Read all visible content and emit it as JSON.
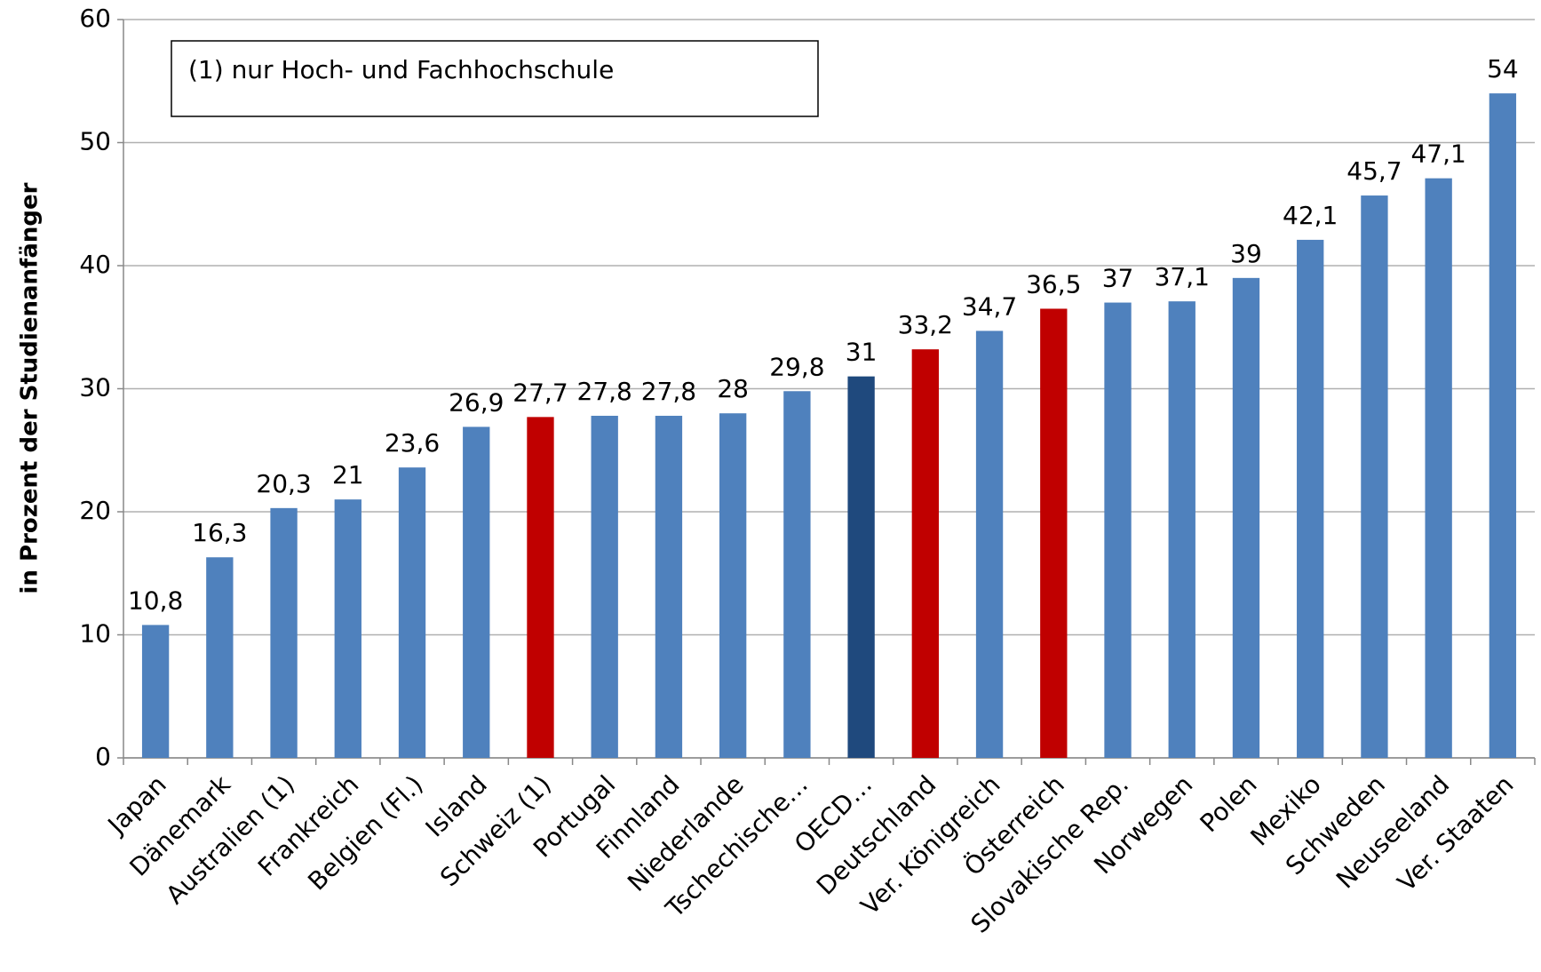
{
  "chart_data": {
    "type": "bar",
    "y_label": "in Prozent der Studienanfänger",
    "annotation": "(1) nur Hoch- und Fachhochschule",
    "categories": [
      "Japan",
      "Dänemark",
      "Australien (1)",
      "Frankreich",
      "Belgien (Fl.)",
      "Island",
      "Schweiz (1)",
      "Portugal",
      "Finnland",
      "Niederlande",
      "Tschechische…",
      "OECD…",
      "Deutschland",
      "Ver. Königreich",
      "Österreich",
      "Slovakische Rep.",
      "Norwegen",
      "Polen",
      "Mexiko",
      "Schweden",
      "Neuseeland",
      "Ver. Staaten"
    ],
    "values": [
      10.8,
      16.3,
      20.3,
      21,
      23.6,
      26.9,
      27.7,
      27.8,
      27.8,
      28,
      29.8,
      31,
      33.2,
      34.7,
      36.5,
      37,
      37.1,
      39,
      42.1,
      45.7,
      47.1,
      54
    ],
    "value_labels": [
      "10,8",
      "16,3",
      "20,3",
      "21",
      "23,6",
      "26,9",
      "27,7",
      "27,8",
      "27,8",
      "28",
      "29,8",
      "31",
      "33,2",
      "34,7",
      "36,5",
      "37",
      "37,1",
      "39",
      "42,1",
      "45,7",
      "47,1",
      "54"
    ],
    "colors": [
      "#4f81bd",
      "#4f81bd",
      "#4f81bd",
      "#4f81bd",
      "#4f81bd",
      "#4f81bd",
      "#c00000",
      "#4f81bd",
      "#4f81bd",
      "#4f81bd",
      "#4f81bd",
      "#1f497d",
      "#c00000",
      "#4f81bd",
      "#c00000",
      "#4f81bd",
      "#4f81bd",
      "#4f81bd",
      "#4f81bd",
      "#4f81bd",
      "#4f81bd",
      "#4f81bd"
    ],
    "ylim": [
      0,
      60
    ],
    "yticks": [
      0,
      10,
      20,
      30,
      40,
      50,
      60
    ],
    "grid": true
  }
}
